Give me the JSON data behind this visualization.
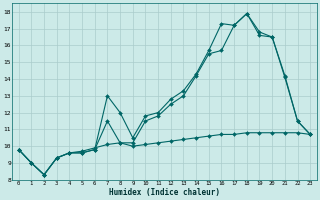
{
  "xlabel": "Humidex (Indice chaleur)",
  "bg_color": "#cceae8",
  "grid_color": "#aacccc",
  "line_color": "#006666",
  "xlim": [
    -0.5,
    23.5
  ],
  "ylim": [
    8,
    18.5
  ],
  "xticks": [
    0,
    1,
    2,
    3,
    4,
    5,
    6,
    7,
    8,
    9,
    10,
    11,
    12,
    13,
    14,
    15,
    16,
    17,
    18,
    19,
    20,
    21,
    22,
    23
  ],
  "yticks": [
    8,
    9,
    10,
    11,
    12,
    13,
    14,
    15,
    16,
    17,
    18
  ],
  "series1_x": [
    0,
    1,
    2,
    3,
    4,
    5,
    6,
    7,
    8,
    9,
    10,
    11,
    12,
    13,
    14,
    15,
    16,
    17,
    18,
    19,
    20,
    21,
    22,
    23
  ],
  "series1_y": [
    9.8,
    9.0,
    8.3,
    9.3,
    9.6,
    9.6,
    9.8,
    11.5,
    10.2,
    10.2,
    11.5,
    11.8,
    12.5,
    13.0,
    14.2,
    15.5,
    15.7,
    17.2,
    17.9,
    16.6,
    16.5,
    14.1,
    11.5,
    10.7
  ],
  "series2_x": [
    0,
    1,
    2,
    3,
    4,
    5,
    6,
    7,
    8,
    9,
    10,
    11,
    12,
    13,
    14,
    15,
    16,
    17,
    18,
    19,
    20,
    21,
    22,
    23
  ],
  "series2_y": [
    9.8,
    9.0,
    8.3,
    9.3,
    9.6,
    9.6,
    9.8,
    13.0,
    12.0,
    10.5,
    11.8,
    12.0,
    12.8,
    13.3,
    14.3,
    15.7,
    17.3,
    17.2,
    17.9,
    16.8,
    16.5,
    14.2,
    11.5,
    10.7
  ],
  "series3_x": [
    0,
    1,
    2,
    3,
    4,
    5,
    6,
    7,
    8,
    9,
    10,
    11,
    12,
    13,
    14,
    15,
    16,
    17,
    18,
    19,
    20,
    21,
    22,
    23
  ],
  "series3_y": [
    9.8,
    9.0,
    8.3,
    9.3,
    9.6,
    9.7,
    9.9,
    10.1,
    10.2,
    10.0,
    10.1,
    10.2,
    10.3,
    10.4,
    10.5,
    10.6,
    10.7,
    10.7,
    10.8,
    10.8,
    10.8,
    10.8,
    10.8,
    10.7
  ]
}
